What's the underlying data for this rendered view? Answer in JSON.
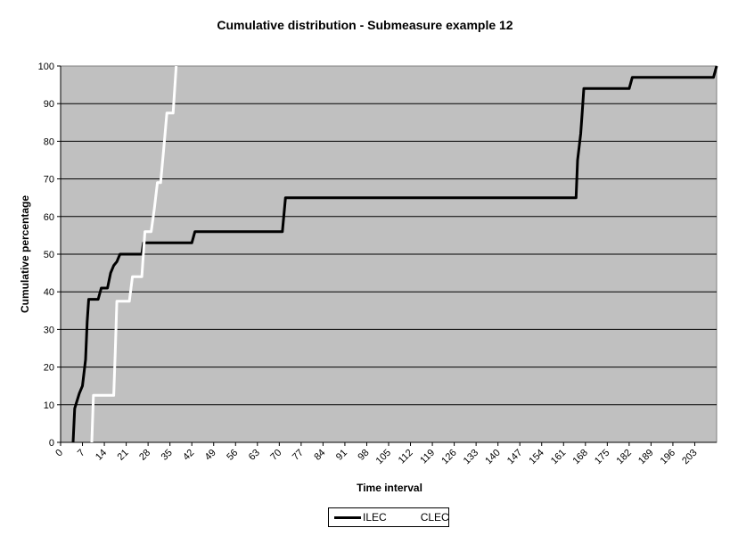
{
  "chart_data": {
    "type": "line",
    "title": "Cumulative distribution - Submeasure example 12",
    "xlabel": "Time interval",
    "ylabel": "Cumulative percentage",
    "xlim": [
      0,
      210
    ],
    "ylim": [
      0,
      100
    ],
    "x_ticks": [
      "0",
      "7",
      "14",
      "21",
      "28",
      "35",
      "42",
      "49",
      "56",
      "63",
      "70",
      "77",
      "84",
      "91",
      "98",
      "105",
      "112",
      "119",
      "126",
      "133",
      "140",
      "147",
      "154",
      "161",
      "168",
      "175",
      "182",
      "189",
      "196",
      "203"
    ],
    "y_ticks": [
      "0",
      "10",
      "20",
      "30",
      "40",
      "50",
      "60",
      "70",
      "80",
      "90",
      "100"
    ],
    "grid": "horizontal",
    "legend_position": "bottom",
    "plot_background": "#c0c0c0",
    "series": [
      {
        "name": "ILEC",
        "color": "#000000",
        "points": [
          [
            4,
            0
          ],
          [
            4.5,
            9
          ],
          [
            6,
            13
          ],
          [
            7,
            15
          ],
          [
            8,
            22
          ],
          [
            8.5,
            32
          ],
          [
            9,
            38
          ],
          [
            11,
            38
          ],
          [
            12,
            38
          ],
          [
            13,
            41
          ],
          [
            15,
            41
          ],
          [
            16,
            45
          ],
          [
            17,
            47
          ],
          [
            18,
            48
          ],
          [
            19,
            50
          ],
          [
            21,
            50
          ],
          [
            26,
            50
          ],
          [
            26.5,
            53
          ],
          [
            31,
            53
          ],
          [
            35,
            53
          ],
          [
            42,
            53
          ],
          [
            43,
            56
          ],
          [
            49,
            56
          ],
          [
            56,
            56
          ],
          [
            63,
            56
          ],
          [
            71,
            56
          ],
          [
            72,
            65
          ],
          [
            77,
            65
          ],
          [
            98,
            65
          ],
          [
            119,
            65
          ],
          [
            140,
            65
          ],
          [
            165,
            65
          ],
          [
            165.5,
            75
          ],
          [
            166.5,
            82
          ],
          [
            167,
            88
          ],
          [
            167.5,
            94
          ],
          [
            170,
            94
          ],
          [
            182,
            94
          ],
          [
            183,
            97
          ],
          [
            189,
            97
          ],
          [
            196,
            97
          ],
          [
            209,
            97
          ],
          [
            210,
            100
          ]
        ]
      },
      {
        "name": "CLEC",
        "color": "#ffffff",
        "points": [
          [
            10,
            0
          ],
          [
            10.5,
            12.5
          ],
          [
            14,
            12.5
          ],
          [
            17,
            12.5
          ],
          [
            17.5,
            24
          ],
          [
            18,
            37.5
          ],
          [
            21,
            37.5
          ],
          [
            22,
            37.5
          ],
          [
            23,
            44
          ],
          [
            26,
            44
          ],
          [
            27,
            56
          ],
          [
            29,
            56
          ],
          [
            30,
            62
          ],
          [
            31,
            69
          ],
          [
            32,
            69
          ],
          [
            33,
            78
          ],
          [
            34,
            87.5
          ],
          [
            36,
            87.5
          ],
          [
            37,
            100
          ]
        ]
      }
    ]
  }
}
